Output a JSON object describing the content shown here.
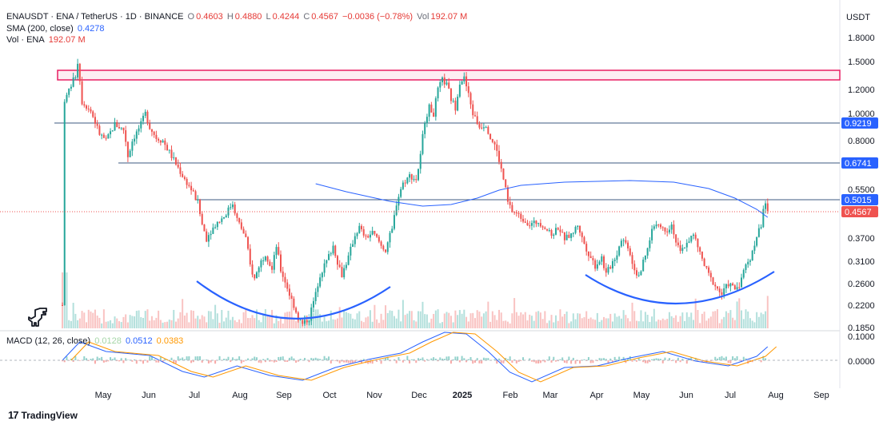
{
  "header": {
    "symbol": "ENAUSDT · ENA / TetherUS · 1D · BINANCE",
    "o_label": "O",
    "o": "0.4603",
    "h_label": "H",
    "h": "0.4880",
    "l_label": "L",
    "l": "0.4244",
    "c_label": "C",
    "c": "0.4567",
    "change": "−0.0036 (−0.78%)",
    "vol_label": "Vol",
    "vol": "192.07 M"
  },
  "sma_legend": {
    "label": "SMA (200, close)",
    "value": "0.4278"
  },
  "vol_legend": {
    "label": "Vol · ENA",
    "value": "192.07 M"
  },
  "macd_legend": {
    "label": "MACD (12, 26, close)",
    "hist": "0.0128",
    "macd": "0.0512",
    "signal": "0.0383"
  },
  "currency": "USDT",
  "brand": "TradingView",
  "colors": {
    "up": "#26a69a",
    "down": "#ef5350",
    "sma": "#2962ff",
    "hline": "#3d5a80",
    "zone": "#e91e63",
    "arc": "#2962ff"
  },
  "chart_data": {
    "type": "candlestick",
    "price_scale_ticks": [
      "1.8000",
      "1.5000",
      "1.2000",
      "1.0000",
      "0.8000",
      "0.5500",
      "0.3700",
      "0.3100",
      "0.2600",
      "0.2200",
      "0.1850"
    ],
    "price_axis_labels": [
      {
        "value": "0.9219",
        "kind": "line"
      },
      {
        "value": "0.6741",
        "kind": "line"
      },
      {
        "value": "0.5015",
        "kind": "line"
      },
      {
        "value": "0.4567",
        "kind": "last"
      }
    ],
    "macd_scale_ticks": [
      "0.1000",
      "0.0000"
    ],
    "x_labels": [
      "May",
      "Jun",
      "Jul",
      "Aug",
      "Sep",
      "Oct",
      "Nov",
      "Dec",
      "2025",
      "Feb",
      "Mar",
      "Apr",
      "May",
      "Jun",
      "Jul",
      "Aug",
      "Sep"
    ],
    "resistance_zone": [
      1.28,
      1.38
    ],
    "horizontal_levels": [
      0.9219,
      0.6741,
      0.5015
    ],
    "last_price": 0.4567,
    "price_path": [
      [
        0,
        0.22
      ],
      [
        1,
        1.1
      ],
      [
        5,
        1.3
      ],
      [
        6,
        1.35
      ],
      [
        7,
        1.5
      ],
      [
        9,
        1.1
      ],
      [
        13,
        1.02
      ],
      [
        17,
        0.85
      ],
      [
        20,
        0.8
      ],
      [
        24,
        0.92
      ],
      [
        28,
        0.88
      ],
      [
        30,
        0.72
      ],
      [
        32,
        0.8
      ],
      [
        36,
        0.92
      ],
      [
        38,
        1.0
      ],
      [
        40,
        0.9
      ],
      [
        43,
        0.82
      ],
      [
        46,
        0.8
      ],
      [
        50,
        0.72
      ],
      [
        56,
        0.6
      ],
      [
        62,
        0.5
      ],
      [
        64,
        0.42
      ],
      [
        66,
        0.37
      ],
      [
        70,
        0.42
      ],
      [
        74,
        0.45
      ],
      [
        78,
        0.5
      ],
      [
        80,
        0.44
      ],
      [
        84,
        0.37
      ],
      [
        86,
        0.3
      ],
      [
        88,
        0.27
      ],
      [
        90,
        0.3
      ],
      [
        93,
        0.33
      ],
      [
        96,
        0.29
      ],
      [
        98,
        0.35
      ],
      [
        100,
        0.29
      ],
      [
        104,
        0.24
      ],
      [
        108,
        0.2
      ],
      [
        110,
        0.19
      ],
      [
        113,
        0.2
      ],
      [
        116,
        0.24
      ],
      [
        118,
        0.28
      ],
      [
        121,
        0.31
      ],
      [
        124,
        0.35
      ],
      [
        126,
        0.31
      ],
      [
        128,
        0.28
      ],
      [
        131,
        0.32
      ],
      [
        134,
        0.38
      ],
      [
        136,
        0.41
      ],
      [
        139,
        0.37
      ],
      [
        142,
        0.39
      ],
      [
        146,
        0.35
      ],
      [
        148,
        0.34
      ],
      [
        151,
        0.4
      ],
      [
        153,
        0.5
      ],
      [
        156,
        0.58
      ],
      [
        159,
        0.62
      ],
      [
        162,
        0.6
      ],
      [
        164,
        0.72
      ],
      [
        166,
        0.95
      ],
      [
        168,
        1.05
      ],
      [
        170,
        1.0
      ],
      [
        172,
        1.2
      ],
      [
        174,
        1.3
      ],
      [
        176,
        1.25
      ],
      [
        178,
        1.12
      ],
      [
        180,
        1.05
      ],
      [
        182,
        1.28
      ],
      [
        184,
        1.32
      ],
      [
        186,
        1.15
      ],
      [
        188,
        1.0
      ],
      [
        191,
        0.9
      ],
      [
        194,
        0.92
      ],
      [
        196,
        0.82
      ],
      [
        198,
        0.78
      ],
      [
        200,
        0.7
      ],
      [
        202,
        0.6
      ],
      [
        204,
        0.5
      ],
      [
        206,
        0.47
      ],
      [
        208,
        0.46
      ],
      [
        211,
        0.44
      ],
      [
        214,
        0.42
      ],
      [
        218,
        0.43
      ],
      [
        221,
        0.41
      ],
      [
        224,
        0.38
      ],
      [
        227,
        0.41
      ],
      [
        230,
        0.37
      ],
      [
        233,
        0.38
      ],
      [
        236,
        0.42
      ],
      [
        238,
        0.37
      ],
      [
        241,
        0.33
      ],
      [
        244,
        0.3
      ],
      [
        247,
        0.32
      ],
      [
        249,
        0.28
      ],
      [
        251,
        0.3
      ],
      [
        254,
        0.33
      ],
      [
        256,
        0.37
      ],
      [
        259,
        0.35
      ],
      [
        261,
        0.31
      ],
      [
        263,
        0.28
      ],
      [
        265,
        0.29
      ],
      [
        268,
        0.34
      ],
      [
        270,
        0.4
      ],
      [
        272,
        0.43
      ],
      [
        274,
        0.41
      ],
      [
        277,
        0.4
      ],
      [
        279,
        0.42
      ],
      [
        281,
        0.36
      ],
      [
        283,
        0.33
      ],
      [
        286,
        0.36
      ],
      [
        289,
        0.38
      ],
      [
        292,
        0.33
      ],
      [
        294,
        0.3
      ],
      [
        297,
        0.27
      ],
      [
        300,
        0.25
      ],
      [
        302,
        0.24
      ],
      [
        305,
        0.26
      ],
      [
        308,
        0.25
      ],
      [
        310,
        0.26
      ],
      [
        313,
        0.3
      ],
      [
        316,
        0.33
      ],
      [
        318,
        0.38
      ],
      [
        320,
        0.42
      ],
      [
        321,
        0.48
      ],
      [
        322,
        0.5
      ],
      [
        323,
        0.46
      ]
    ]
  }
}
